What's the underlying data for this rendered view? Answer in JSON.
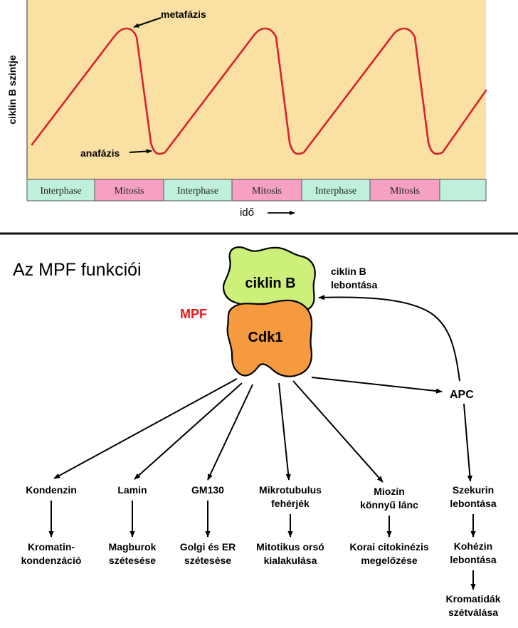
{
  "colors": {
    "plot_bg": "#fae0a3",
    "curve": "#d8222f",
    "interphase": "#bff0dc",
    "mitosis": "#f6a0c4",
    "cyclin": "#ccf07a",
    "cdk": "#f59a3e",
    "mpf": "#e8161c"
  },
  "chart": {
    "ylabel": "ciklin B szintje",
    "xlabel": "idő",
    "annotations": {
      "metaphase": "metafázis",
      "anaphase": "anafázis"
    },
    "phases": [
      "Interphase",
      "Mitosis",
      "Interphase",
      "Mitosis",
      "Interphase",
      "Mitosis",
      ""
    ]
  },
  "chart_data": {
    "type": "line",
    "title": "",
    "xlabel": "idő",
    "ylabel": "ciklin B szintje",
    "series": [
      {
        "values": "cyclin B level rises linearly through interphase, peaks at metaphase, drops sharply at anaphase; three repeated cycles"
      }
    ]
  },
  "diagram": {
    "title": "Az MPF funkciói",
    "mpf_label": "MPF",
    "cyclin_label": "ciklin B",
    "cdk_label": "Cdk1",
    "cyclin_degradation": [
      "ciklin B",
      "lebontása"
    ],
    "apc": "APC",
    "targets": [
      {
        "top": [
          "Kondenzin"
        ],
        "bottom": [
          "Kromatin-",
          "kondenzáció"
        ]
      },
      {
        "top": [
          "Lamin"
        ],
        "bottom": [
          "Magburok",
          "szétesése"
        ]
      },
      {
        "top": [
          "GM130"
        ],
        "bottom": [
          "Golgi és ER",
          "szétesése"
        ]
      },
      {
        "top": [
          "Mikrotubulus",
          "fehérjék"
        ],
        "bottom": [
          "Mitotikus orsó",
          "kialakulása"
        ]
      },
      {
        "top": [
          "Miozin",
          "könnyű lánc"
        ],
        "bottom": [
          "Korai citokinézis",
          "megelőzése"
        ]
      }
    ],
    "apc_chain": [
      [
        "Szekurin",
        "lebontása"
      ],
      [
        "Kohézin",
        "lebontása"
      ],
      [
        "Kromatidák",
        "szétválása"
      ]
    ]
  }
}
